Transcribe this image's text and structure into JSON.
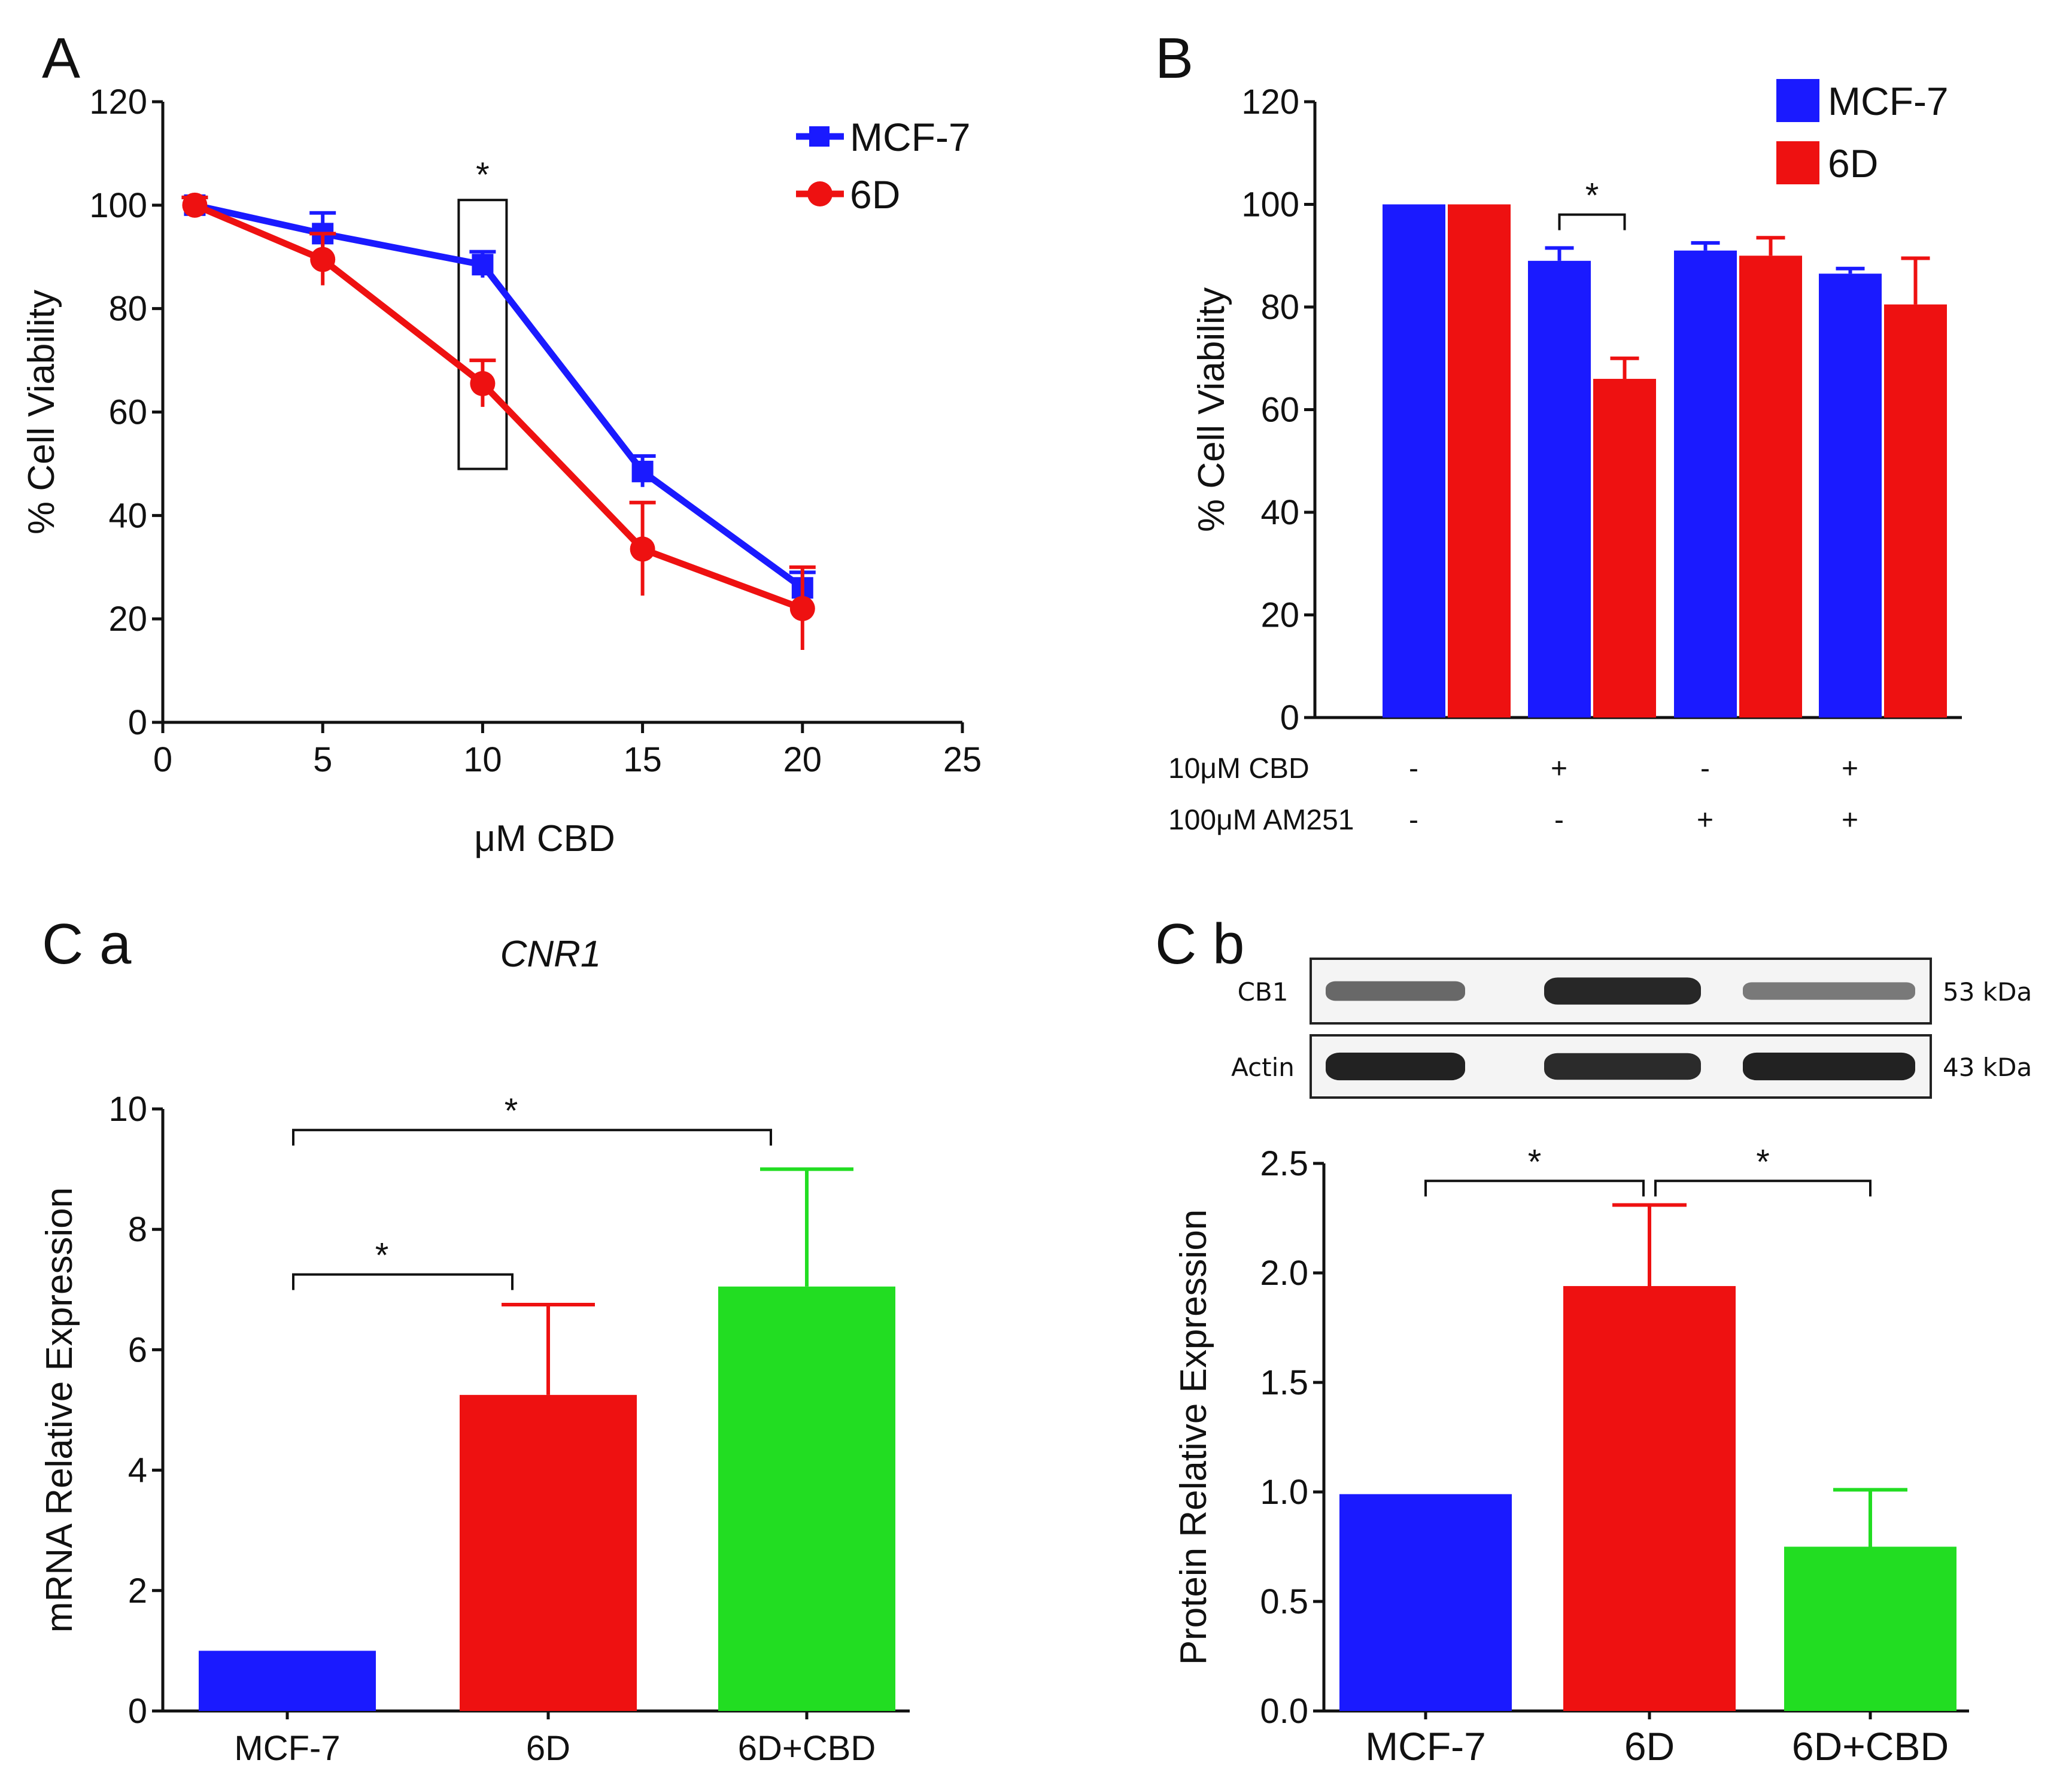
{
  "panels": {
    "a": "A",
    "b": "B",
    "ca": "C a",
    "cb": "C b"
  },
  "chart_data": [
    {
      "id": "A",
      "type": "line",
      "xlabel": "μM CBD",
      "ylabel": "% Cell Viability",
      "xlim": [
        0,
        25
      ],
      "ylim": [
        0,
        120
      ],
      "xticks": [
        0,
        5,
        10,
        15,
        20,
        25
      ],
      "yticks": [
        0,
        20,
        40,
        60,
        80,
        100,
        120
      ],
      "x": [
        1,
        5,
        10,
        15,
        20
      ],
      "series": [
        {
          "name": "MCF-7",
          "color": "#1a1aff",
          "marker": "square",
          "values": [
            100,
            94.5,
            88.5,
            48.5,
            26
          ],
          "errors": [
            1.5,
            4,
            2.5,
            3,
            3
          ]
        },
        {
          "name": "6D",
          "color": "#ee1111",
          "marker": "circle",
          "values": [
            100,
            89.5,
            65.5,
            33.5,
            22
          ],
          "errors": [
            1.5,
            5,
            4.5,
            9,
            8
          ]
        }
      ],
      "annotations": [
        {
          "text": "*",
          "x": 10
        }
      ]
    },
    {
      "id": "B",
      "type": "bar",
      "ylabel": "% Cell Viability",
      "ylim": [
        0,
        120
      ],
      "yticks": [
        0,
        20,
        40,
        60,
        80,
        100,
        120
      ],
      "groups": 4,
      "series": [
        {
          "name": "MCF-7",
          "color": "#1a1aff",
          "values": [
            100,
            89,
            91,
            86.5
          ],
          "errors": [
            0,
            2.5,
            1.5,
            1
          ]
        },
        {
          "name": "6D",
          "color": "#ee1111",
          "values": [
            100,
            66,
            90,
            80.5
          ],
          "errors": [
            0,
            4,
            3.5,
            9
          ]
        }
      ],
      "conditions": [
        {
          "label": "10μM CBD",
          "values": [
            "-",
            "+",
            "-",
            "+"
          ]
        },
        {
          "label": "100μM AM251",
          "values": [
            "-",
            "-",
            "+",
            "+"
          ]
        }
      ],
      "annotations": [
        {
          "text": "*",
          "group": 2
        }
      ]
    },
    {
      "id": "C a",
      "type": "bar",
      "title": "CNR1",
      "ylabel": "mRNA Relative Expression",
      "ylim": [
        0,
        10
      ],
      "yticks": [
        0,
        2,
        4,
        6,
        8,
        10
      ],
      "categories": [
        "MCF-7",
        "6D",
        "6D+CBD"
      ],
      "values": [
        1.0,
        5.25,
        7.05
      ],
      "errors": [
        0,
        1.5,
        1.95
      ],
      "colors": [
        "#1a1aff",
        "#ee1111",
        "#22dd22"
      ],
      "annotations": [
        {
          "text": "*",
          "from": 0,
          "to": 1
        },
        {
          "text": "*",
          "from": 0,
          "to": 2
        }
      ]
    },
    {
      "id": "C b",
      "type": "bar",
      "ylabel": "Protein Relative Expression",
      "ylim": [
        0,
        2.5
      ],
      "yticks": [
        "0.0",
        "0.5",
        "1.0",
        "1.5",
        "2.0",
        "2.5"
      ],
      "categories": [
        "MCF-7",
        "6D",
        "6D+CBD"
      ],
      "values": [
        0.99,
        1.94,
        0.75
      ],
      "errors": [
        0,
        0.37,
        0.26
      ],
      "colors": [
        "#1a1aff",
        "#ee1111",
        "#22dd22"
      ],
      "annotations": [
        {
          "text": "*",
          "from": 0,
          "to": 1
        },
        {
          "text": "*",
          "from": 1,
          "to": 2
        }
      ]
    }
  ],
  "blot": {
    "rows": [
      {
        "label": "CB1",
        "kda": "53 kDa",
        "intensity": [
          0.55,
          0.92,
          0.45
        ]
      },
      {
        "label": "Actin",
        "kda": "43 kDa",
        "intensity": [
          0.95,
          0.9,
          0.95
        ]
      }
    ]
  }
}
